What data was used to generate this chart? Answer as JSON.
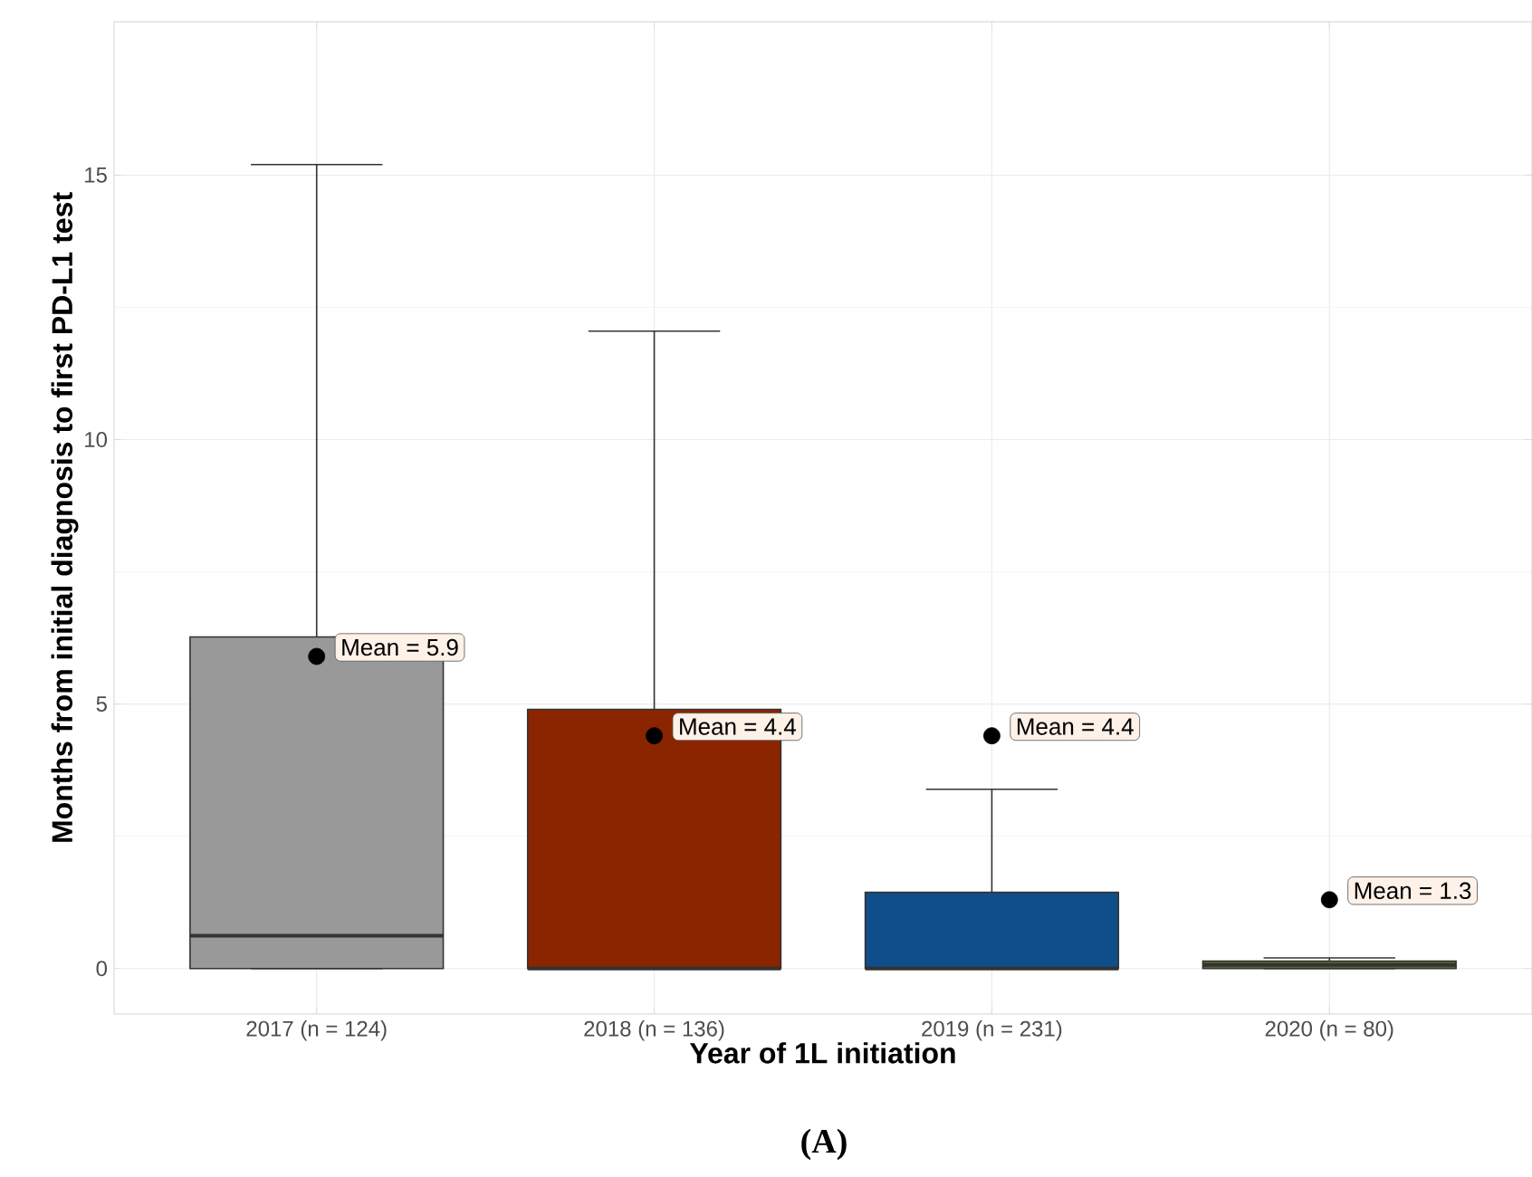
{
  "chart_data": {
    "type": "box",
    "xlabel": "Year of 1L initiation",
    "ylabel": "Months from initial diagnosis to first PD-L1 test",
    "categories": [
      "2017 (n = 124)",
      "2018 (n = 136)",
      "2019 (n = 231)",
      "2020 (n = 80)"
    ],
    "colors": [
      "#999999",
      "#8b2500",
      "#104e8b",
      "#556b2f"
    ],
    "boxes": [
      {
        "low": 0,
        "q1": 0,
        "median": 0.62,
        "q3": 6.27,
        "high": 15.2,
        "mean": 5.9
      },
      {
        "low": 0,
        "q1": 0,
        "median": 0,
        "q3": 4.9,
        "high": 12.05,
        "mean": 4.4
      },
      {
        "low": 0,
        "q1": 0,
        "median": 0,
        "q3": 1.44,
        "high": 3.39,
        "mean": 4.4
      },
      {
        "low": 0,
        "q1": 0,
        "median": 0.07,
        "q3": 0.14,
        "high": 0.2,
        "mean": 1.3
      }
    ],
    "ylim": [
      -0.86,
      17.9
    ],
    "yticks": [
      0,
      5,
      10,
      15
    ],
    "grid": true,
    "annotations": [
      "Mean = 5.9",
      "Mean = 4.4",
      "Mean = 4.4",
      "Mean = 1.3",
      "(A)"
    ]
  }
}
